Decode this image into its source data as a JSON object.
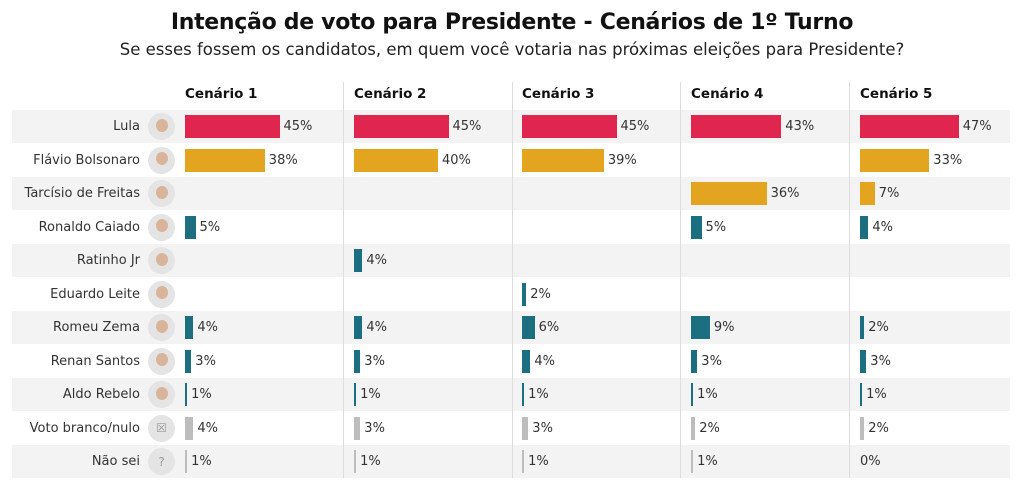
{
  "chart_data": {
    "type": "bar",
    "title": "Intenção de voto para Presidente - Cenários de 1º Turno",
    "subtitle": "Se esses fossem os candidatos, em quem você votaria nas próximas eleições para Presidente?",
    "categories": [
      "Lula",
      "Flávio Bolsonaro",
      "Tarcísio de Freitas",
      "Ronaldo Caiado",
      "Ratinho Jr",
      "Eduardo Leite",
      "Romeu Zema",
      "Renan Santos",
      "Aldo Rebelo",
      "Voto branco/nulo",
      "Não sei"
    ],
    "category_icons": [
      "photo",
      "photo",
      "photo",
      "photo",
      "photo",
      "photo",
      "photo",
      "photo",
      "photo",
      "x-box-icon",
      "question-box-icon"
    ],
    "bar_colors": [
      "#e0264f",
      "#e3a520",
      "#e3a520",
      "#1b6f80",
      "#1b6f80",
      "#1b6f80",
      "#1b6f80",
      "#1b6f80",
      "#1b6f80",
      "#bdbdbd",
      "#bdbdbd"
    ],
    "series": [
      {
        "name": "Cenário 1",
        "values": [
          45,
          38,
          null,
          5,
          null,
          null,
          4,
          3,
          1,
          4,
          1
        ]
      },
      {
        "name": "Cenário 2",
        "values": [
          45,
          40,
          null,
          null,
          4,
          null,
          4,
          3,
          1,
          3,
          1
        ]
      },
      {
        "name": "Cenário 3",
        "values": [
          45,
          39,
          null,
          null,
          null,
          2,
          6,
          4,
          1,
          3,
          1
        ]
      },
      {
        "name": "Cenário 4",
        "values": [
          43,
          null,
          36,
          5,
          null,
          null,
          9,
          3,
          1,
          2,
          1
        ]
      },
      {
        "name": "Cenário 5",
        "values": [
          47,
          33,
          7,
          4,
          null,
          null,
          2,
          3,
          1,
          2,
          0
        ]
      }
    ],
    "value_suffix": "%",
    "xlim": [
      0,
      100
    ]
  }
}
